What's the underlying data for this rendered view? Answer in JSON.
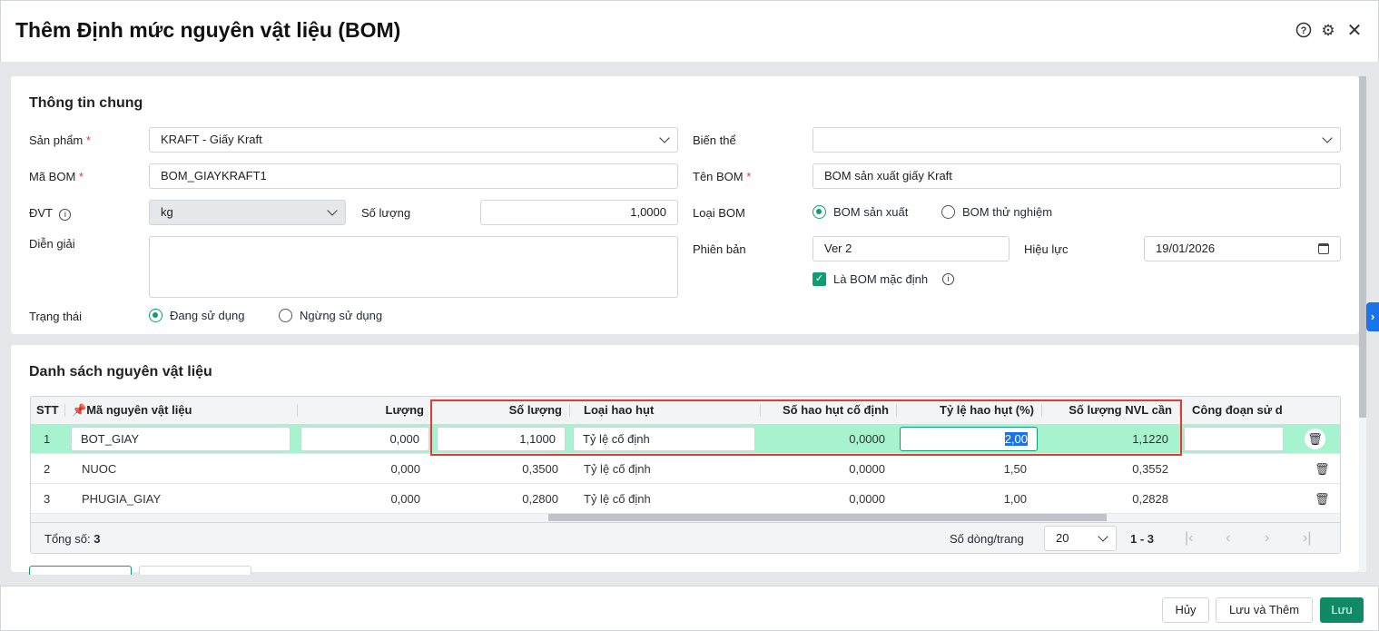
{
  "header": {
    "title": "Thêm Định mức nguyên vật liệu (BOM)"
  },
  "general": {
    "title": "Thông tin chung",
    "san_pham": {
      "label": "Sản phẩm",
      "value": "KRAFT - Giấy Kraft"
    },
    "bien_the": {
      "label": "Biến thể",
      "value": ""
    },
    "ma_bom": {
      "label": "Mã BOM",
      "value": "BOM_GIAYKRAFT1"
    },
    "ten_bom": {
      "label": "Tên BOM",
      "value": "BOM sản xuất giấy Kraft"
    },
    "dvt": {
      "label": "ĐVT",
      "value": "kg"
    },
    "so_luong": {
      "label": "Số lượng",
      "value": "1,0000"
    },
    "loai_bom": {
      "label": "Loại BOM",
      "options": [
        "BOM sản xuất",
        "BOM thử nghiệm"
      ],
      "selected": "BOM sản xuất"
    },
    "dien_giai": {
      "label": "Diễn giải",
      "value": ""
    },
    "phien_ban": {
      "label": "Phiên bản",
      "value": "Ver 2"
    },
    "hieu_luc": {
      "label": "Hiệu lực",
      "value": "19/01/2026"
    },
    "mac_dinh": {
      "label": "Là BOM mặc định",
      "checked": true
    },
    "trang_thai": {
      "label": "Trạng thái",
      "options": [
        "Đang sử dụng",
        "Ngừng sử dụng"
      ],
      "selected": "Đang sử dụng"
    }
  },
  "materials": {
    "title": "Danh sách nguyên vật liệu",
    "columns": [
      "STT",
      "Mã nguyên vật liệu",
      "Lượng",
      "Số lượng",
      "Loại hao hụt",
      "Số hao hụt cố định",
      "Tỷ lệ hao hụt (%)",
      "Số lượng NVL cần",
      "Công đoạn sử d"
    ],
    "rows": [
      {
        "stt": "1",
        "ma": "BOT_GIAY",
        "luong": "0,000",
        "so_luong": "1,1000",
        "loai": "Tỷ lệ cố định",
        "co_dinh": "0,0000",
        "ty_le": "2,00",
        "nvl": "1,1220",
        "cong_doan": ""
      },
      {
        "stt": "2",
        "ma": "NUOC",
        "luong": "0,000",
        "so_luong": "0,3500",
        "loai": "Tỷ lệ cố định",
        "co_dinh": "0,0000",
        "ty_le": "1,50",
        "nvl": "0,3552",
        "cong_doan": ""
      },
      {
        "stt": "3",
        "ma": "PHUGIA_GIAY",
        "luong": "0,000",
        "so_luong": "0,2800",
        "loai": "Tỷ lệ cố định",
        "co_dinh": "0,0000",
        "ty_le": "1,00",
        "nvl": "0,2828",
        "cong_doan": ""
      }
    ],
    "total_label": "Tổng số:",
    "total": "3",
    "page_size_label": "Số dòng/trang",
    "page_size": "20",
    "range": "1 - 3"
  },
  "footer": {
    "cancel": "Hủy",
    "save_add": "Lưu và Thêm",
    "save": "Lưu"
  },
  "colors": {
    "accent": "#0f9d73",
    "selected_row": "#a7f3d0",
    "highlight_box": "#e53935"
  }
}
